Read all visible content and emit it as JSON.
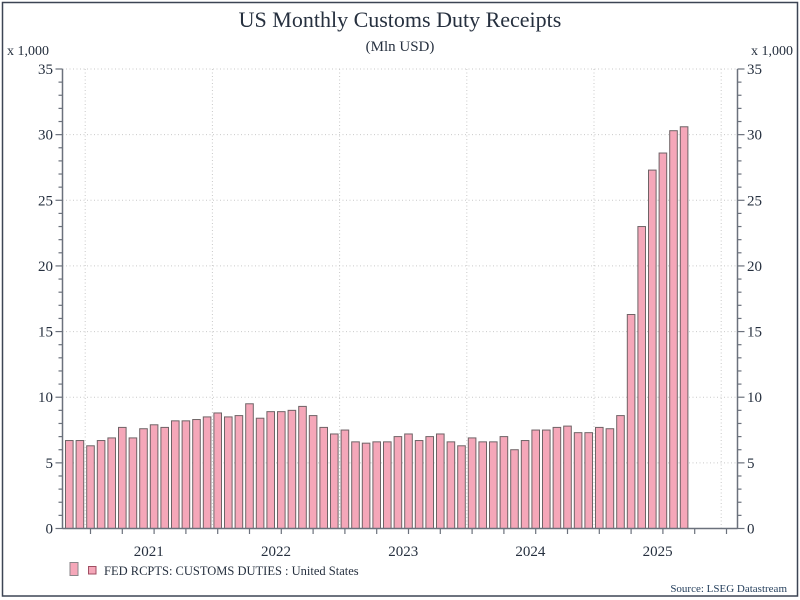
{
  "window": {
    "title": "US Monthly Customs Duty Receipts",
    "subtitle": "(Mln USD)"
  },
  "chart_data": {
    "type": "bar",
    "title": "US Monthly Customs Duty Receipts",
    "subtitle": "(Mln USD)",
    "unit_label_left": "x 1,000",
    "unit_label_right": "x 1,000",
    "xlabel": "",
    "ylabel": "",
    "ylim": [
      0,
      35
    ],
    "ytick_interval": 5,
    "y_minor_tick_interval": 1,
    "ytick_labels": [
      "0",
      "5",
      "10",
      "15",
      "20",
      "25",
      "30",
      "35"
    ],
    "grid": "dotted",
    "x_minor_ticks": "quarterly",
    "year_labels": [
      "2021",
      "2022",
      "2023",
      "2024",
      "2025"
    ],
    "legend": {
      "label": "FED RCPTS: CUSTOMS DUTIES : United States",
      "position": "bottom-left"
    },
    "source": "Source: LSEG Datastream",
    "start_month": "2020-11",
    "end_month": "2025-09",
    "months": [
      "2020-11",
      "2020-12",
      "2021-01",
      "2021-02",
      "2021-03",
      "2021-04",
      "2021-05",
      "2021-06",
      "2021-07",
      "2021-08",
      "2021-09",
      "2021-10",
      "2021-11",
      "2021-12",
      "2022-01",
      "2022-02",
      "2022-03",
      "2022-04",
      "2022-05",
      "2022-06",
      "2022-07",
      "2022-08",
      "2022-09",
      "2022-10",
      "2022-11",
      "2022-12",
      "2023-01",
      "2023-02",
      "2023-03",
      "2023-04",
      "2023-05",
      "2023-06",
      "2023-07",
      "2023-08",
      "2023-09",
      "2023-10",
      "2023-11",
      "2023-12",
      "2024-01",
      "2024-02",
      "2024-03",
      "2024-04",
      "2024-05",
      "2024-06",
      "2024-07",
      "2024-08",
      "2024-09",
      "2024-10",
      "2024-11",
      "2024-12",
      "2025-01",
      "2025-02",
      "2025-03",
      "2025-04",
      "2025-05",
      "2025-06",
      "2025-07",
      "2025-08",
      "2025-09"
    ],
    "values": [
      6.7,
      6.7,
      6.3,
      6.7,
      6.9,
      7.7,
      6.9,
      7.6,
      7.9,
      7.7,
      8.2,
      8.2,
      8.3,
      8.5,
      8.8,
      8.5,
      8.6,
      9.5,
      8.4,
      8.9,
      8.9,
      9.0,
      9.3,
      8.6,
      7.7,
      7.2,
      7.5,
      6.6,
      6.5,
      6.6,
      6.6,
      7.0,
      7.2,
      6.7,
      7.0,
      7.2,
      6.6,
      6.3,
      6.9,
      6.6,
      6.6,
      7.0,
      6.0,
      6.7,
      7.5,
      7.5,
      7.7,
      7.8,
      7.3,
      7.3,
      7.7,
      7.6,
      8.6,
      16.3,
      23.0,
      27.3,
      28.6,
      30.3,
      30.6
    ]
  },
  "colors": {
    "bar_fill": "#F5A7B9",
    "bar_stroke": "#6F6366",
    "legend_bar_stroke": "#8A868A",
    "legend_square_stroke": "#A04E62",
    "axis": "#6B717C",
    "grid": "#C9C9C9",
    "text": "#26303F",
    "source_text": "#27415E",
    "frame": "#3C4454",
    "background": "#FFFFFF"
  }
}
